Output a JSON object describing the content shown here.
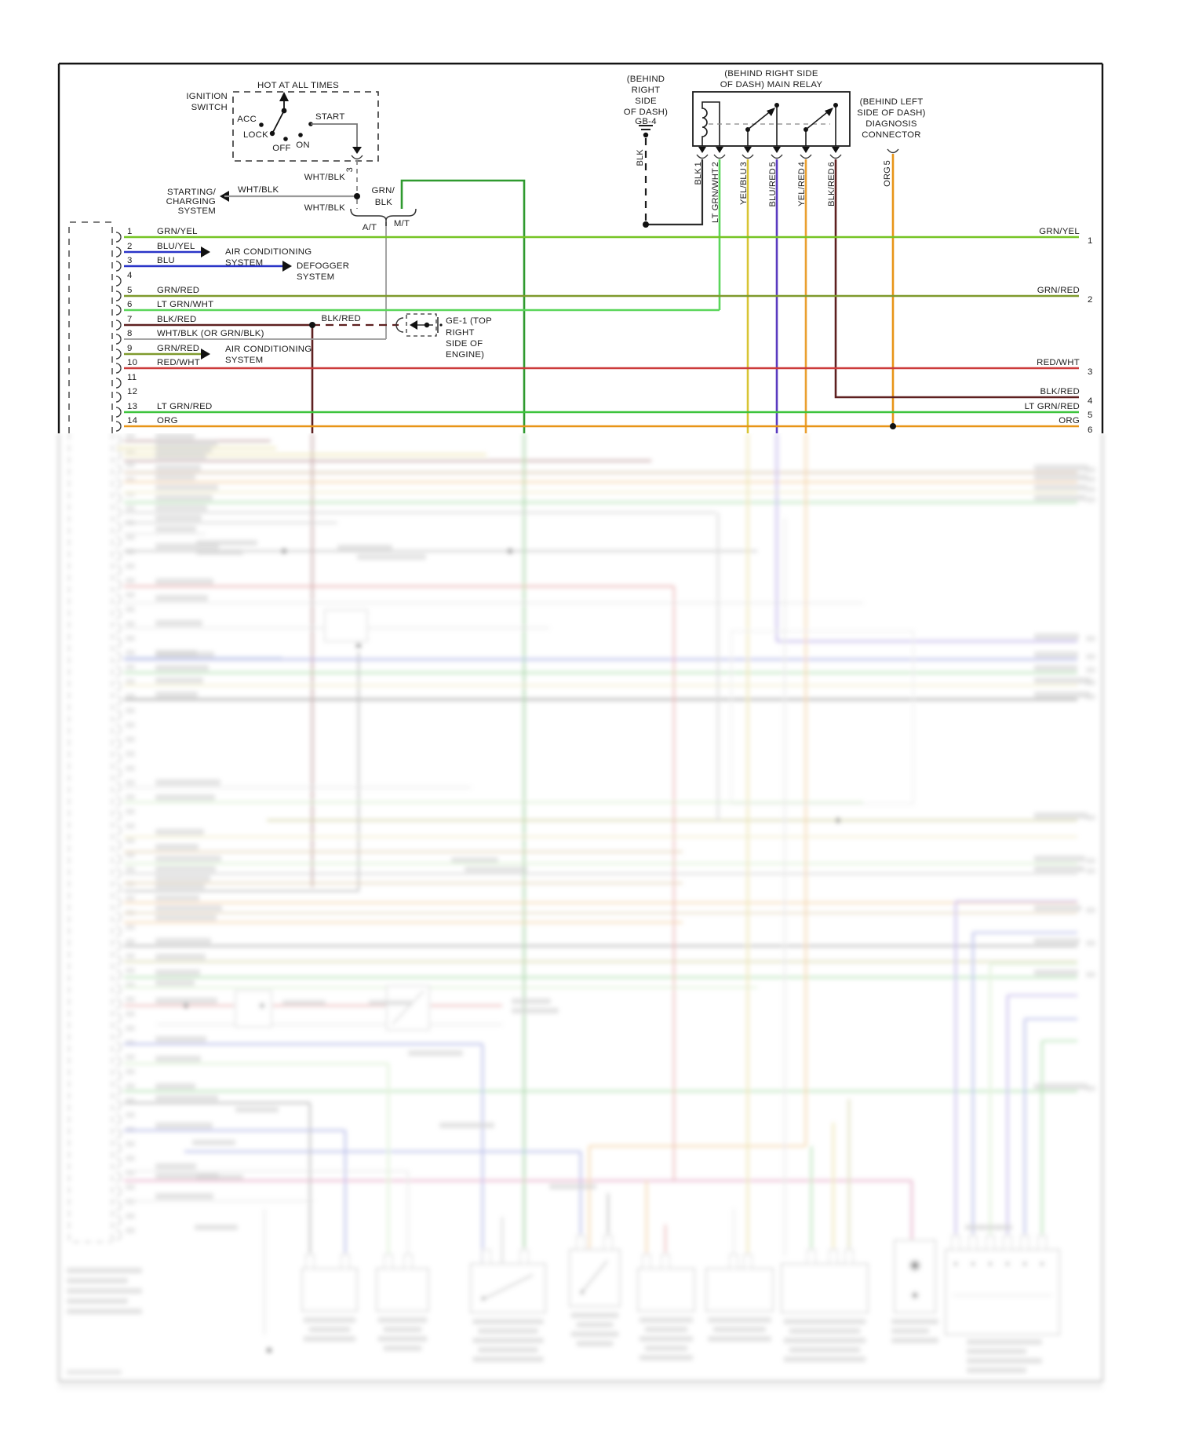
{
  "colors": {
    "blk": "#2b2b2b",
    "wht_blk": "#9a9a9a",
    "grn_yel": "#76c424",
    "blu": "#2a35c8",
    "grn_red": "#7f9a2d",
    "lt_grn_wht": "#5bd65b",
    "blk_red": "#5e2020",
    "red_wht": "#cc3b3b",
    "lt_grn_red": "#3dc43d",
    "org": "#e89417",
    "yel_blu": "#d8c434",
    "blu_red": "#5a3bc0",
    "yel_red": "#eaa030",
    "grn_blk": "#2f9a2f"
  },
  "ignition": {
    "hot": "HOT AT ALL TIMES",
    "title": [
      "IGNITION",
      "SWITCH"
    ],
    "acc": "ACC",
    "lock": "LOCK",
    "off": "OFF",
    "on": "ON",
    "start": "START",
    "splice": "3",
    "wht_blk": "WHT/BLK",
    "grn_blk": [
      "GRN/",
      "BLK"
    ],
    "at": "A/T",
    "mt": "M/T",
    "starting": [
      "STARTING/",
      "CHARGING",
      "SYSTEM"
    ]
  },
  "gb4": {
    "title": [
      "(BEHIND",
      "RIGHT",
      "SIDE",
      "OF DASH)",
      "GB-4"
    ],
    "wire": "BLK"
  },
  "main_relay": {
    "title": [
      "(BEHIND RIGHT SIDE",
      "OF DASH) MAIN RELAY"
    ],
    "pins": [
      {
        "label": "BLK",
        "num": "1"
      },
      {
        "label": "LT GRN/WHT",
        "num": "2"
      },
      {
        "label": "YEL/BLU",
        "num": "3"
      },
      {
        "label": "BLU/RED",
        "num": "5"
      },
      {
        "label": "YEL/RED",
        "num": "4"
      },
      {
        "label": "BLK/RED",
        "num": "6"
      }
    ]
  },
  "diagnosis": {
    "title": [
      "(BEHIND LEFT",
      "SIDE OF DASH)",
      "DIAGNOSIS",
      "CONNECTOR"
    ],
    "pin": {
      "label": "ORG",
      "num": "5"
    }
  },
  "left_connector": {
    "pins": [
      {
        "num": "1",
        "label": "GRN/YEL"
      },
      {
        "num": "2",
        "label": "BLU/YEL"
      },
      {
        "num": "3",
        "label": "BLU"
      },
      {
        "num": "4",
        "label": ""
      },
      {
        "num": "5",
        "label": "GRN/RED"
      },
      {
        "num": "6",
        "label": "LT GRN/WHT"
      },
      {
        "num": "7",
        "label": "BLK/RED"
      },
      {
        "num": "8",
        "label": "WHT/BLK (OR GRN/BLK)"
      },
      {
        "num": "9",
        "label": "GRN/RED"
      },
      {
        "num": "10",
        "label": "RED/WHT"
      },
      {
        "num": "11",
        "label": ""
      },
      {
        "num": "12",
        "label": ""
      },
      {
        "num": "13",
        "label": "LT GRN/RED"
      },
      {
        "num": "14",
        "label": "ORG"
      }
    ]
  },
  "branches": {
    "air_conditioning": [
      "AIR CONDITIONING",
      "SYSTEM"
    ],
    "defogger": [
      "DEFOGGER",
      "SYSTEM"
    ],
    "blk_red": "BLK/RED",
    "ge1": [
      "GE-1 (TOP",
      "RIGHT",
      "SIDE OF",
      "ENGINE)"
    ]
  },
  "right_edge": {
    "labels": [
      {
        "label": "GRN/YEL",
        "num": "1"
      },
      {
        "label": "GRN/RED",
        "num": "2"
      },
      {
        "label": "RED/WHT",
        "num": "3"
      },
      {
        "label": "BLK/RED",
        "num": "4"
      },
      {
        "label": "LT GRN/RED",
        "num": "5"
      },
      {
        "label": "ORG",
        "num": "6"
      }
    ]
  }
}
